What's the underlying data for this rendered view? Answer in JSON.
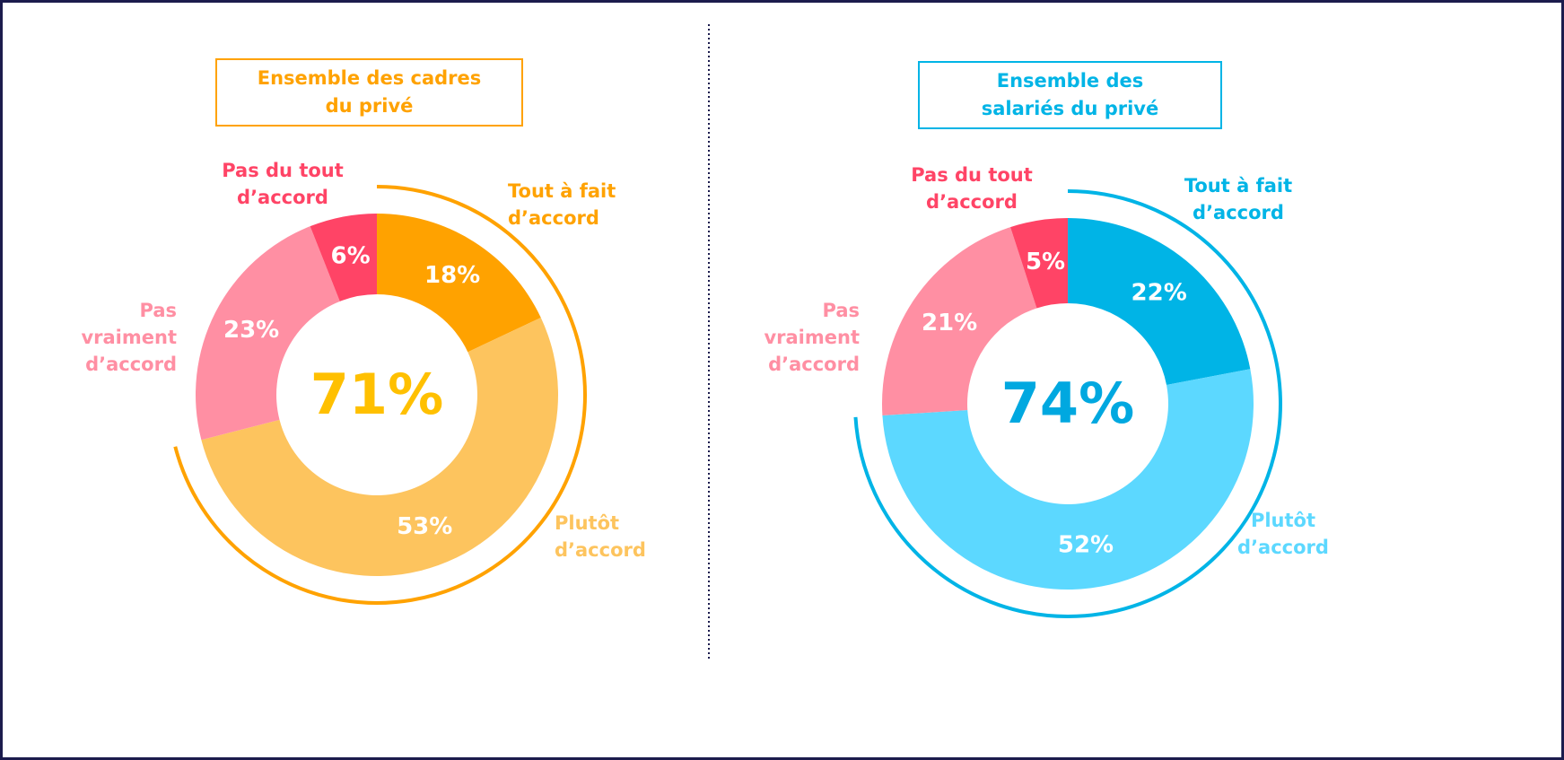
{
  "chart_data": [
    {
      "type": "pie",
      "title": "Ensemble des cadres du privé",
      "accent_color": "#FFA200",
      "annotation": "71%",
      "annotation_color": "#FFC000",
      "categories": [
        "Tout à fait d’accord",
        "Plutôt d’accord",
        "Pas vraiment d’accord",
        "Pas du tout d’accord"
      ],
      "values": [
        18,
        53,
        23,
        6
      ],
      "value_labels": [
        "18%",
        "53%",
        "23%",
        "6%"
      ],
      "colors": [
        "#FFA200",
        "#FDC45E",
        "#FF8FA3",
        "#FF4466"
      ]
    },
    {
      "type": "pie",
      "title": "Ensemble des salariés du privé",
      "accent_color": "#00B4E6",
      "annotation": "74%",
      "annotation_color": "#00A8E0",
      "categories": [
        "Tout à fait d’accord",
        "Plutôt d’accord",
        "Pas vraiment d’accord",
        "Pas du tout d’accord"
      ],
      "values": [
        22,
        52,
        21,
        5
      ],
      "value_labels": [
        "22%",
        "52%",
        "21%",
        "5%"
      ],
      "colors": [
        "#00B4E6",
        "#5CD8FF",
        "#FF8FA3",
        "#FF4466"
      ]
    }
  ]
}
